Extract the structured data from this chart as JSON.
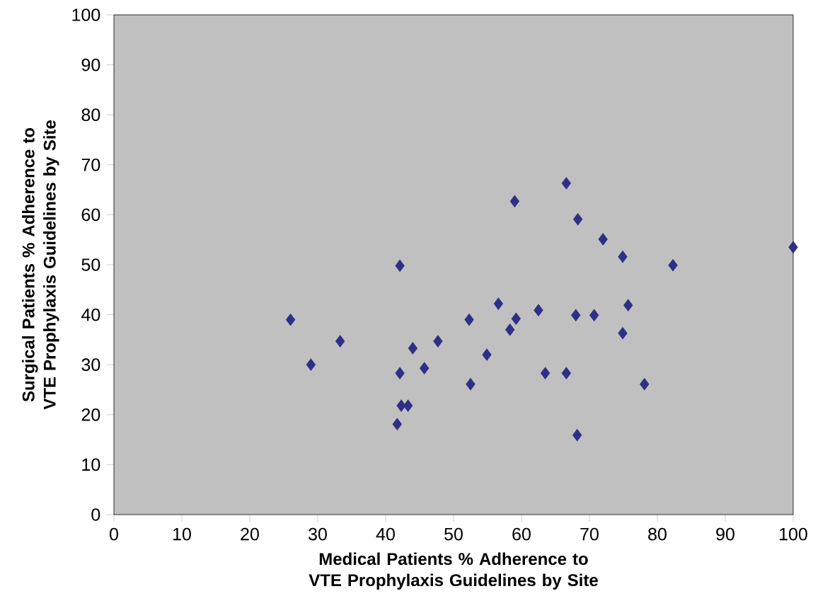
{
  "chart_data": {
    "type": "scatter",
    "xlabel": "Medical Patients % Adherence to VTE Prophylaxis Guidelines by Site",
    "ylabel": "Surgical Patients % Adherence to VTE Prophylaxis Guidelines by Site",
    "marker": "diamond",
    "grid": false,
    "xlim": [
      0,
      100
    ],
    "ylim": [
      0,
      100
    ],
    "xticks": [
      0,
      10,
      20,
      30,
      40,
      50,
      60,
      70,
      80,
      90,
      100
    ],
    "yticks": [
      0,
      10,
      20,
      30,
      40,
      50,
      60,
      70,
      80,
      90,
      100
    ],
    "series": [
      {
        "color": "#2e3085",
        "x": [
          26,
          29,
          33.3,
          41.7,
          42.1,
          42.1,
          42.3,
          43.3,
          44,
          45.7,
          47.7,
          52.3,
          52.5,
          54.9,
          56.6,
          58.3,
          59,
          59.2,
          62.5,
          63.5,
          66.6,
          66.6,
          68,
          68.2,
          68.3,
          70.7,
          72,
          74.9,
          74.9,
          75.7,
          78.1,
          82.3,
          100
        ],
        "values": [
          39,
          30,
          34.7,
          18.1,
          49.8,
          28.3,
          21.8,
          21.8,
          33.3,
          29.3,
          34.7,
          39,
          26.1,
          32,
          42.2,
          37,
          62.7,
          39.2,
          40.9,
          28.3,
          66.3,
          28.3,
          39.9,
          15.9,
          59.1,
          39.9,
          55.1,
          51.6,
          36.3,
          41.9,
          26.1,
          49.9,
          53.5
        ]
      }
    ]
  }
}
